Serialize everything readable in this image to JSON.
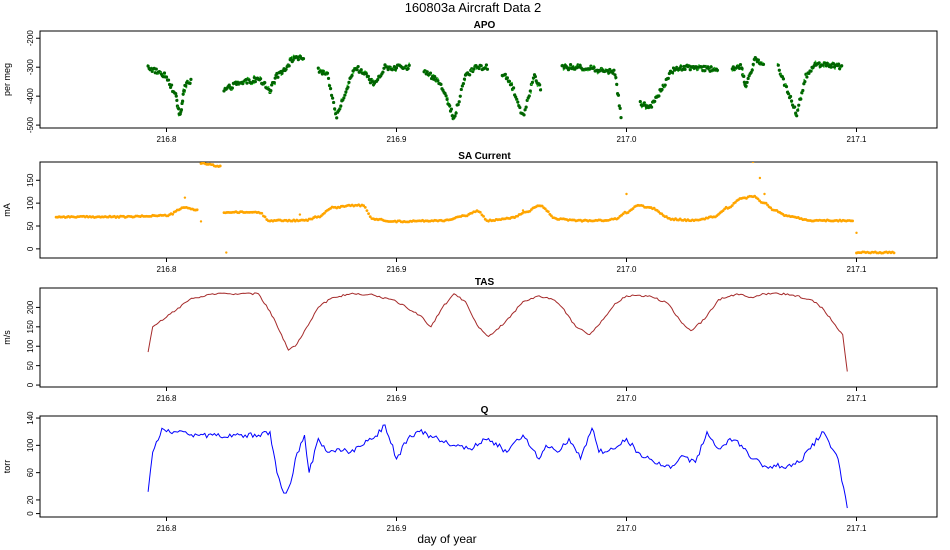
{
  "figure": {
    "title": "160803a   Aircraft Data 2",
    "xlabel": "day of year",
    "xlim": [
      216.745,
      217.135
    ],
    "xticks": [
      216.8,
      216.9,
      217.0,
      217.1
    ],
    "xtick_labels": [
      "216.8",
      "216.9",
      "217.0",
      "217.1"
    ]
  },
  "chart_data": [
    {
      "type": "scatter",
      "title": "APO",
      "xlabel": "",
      "ylabel": "per meg",
      "ylim": [
        -510,
        -175
      ],
      "yticks": [
        -500,
        -400,
        -300,
        -200
      ],
      "ytick_labels": [
        "-500",
        "-400",
        "-300",
        "-200"
      ],
      "color": "#006400",
      "color2": "#32cd32",
      "segments": [
        {
          "x": [
            216.792,
            216.796,
            216.8,
            216.804,
            216.806,
            216.808,
            216.811
          ],
          "y": [
            -300,
            -315,
            -330,
            -400,
            -470,
            -360,
            -345
          ]
        },
        {
          "x": [
            216.825,
            216.83,
            216.835,
            216.84,
            216.845,
            216.848,
            216.852,
            216.856,
            216.86
          ],
          "y": [
            -380,
            -360,
            -350,
            -340,
            -380,
            -330,
            -300,
            -260,
            -280
          ]
        },
        {
          "x": [
            216.866,
            216.87,
            216.874,
            216.878,
            216.882,
            216.886,
            216.89,
            216.895,
            216.9,
            216.906
          ],
          "y": [
            -310,
            -330,
            -470,
            -380,
            -300,
            -320,
            -360,
            -300,
            -300,
            -300
          ]
        },
        {
          "x": [
            216.912,
            216.918,
            216.922,
            216.925,
            216.93,
            216.935,
            216.94
          ],
          "y": [
            -320,
            -340,
            -410,
            -480,
            -330,
            -300,
            -300
          ]
        },
        {
          "x": [
            216.946,
            216.95,
            216.955,
            216.96,
            216.963
          ],
          "y": [
            -320,
            -360,
            -470,
            -330,
            -380
          ]
        },
        {
          "x": [
            216.972,
            216.978,
            216.985,
            216.99,
            216.995,
            216.998
          ],
          "y": [
            -300,
            -300,
            -305,
            -310,
            -320,
            -490
          ]
        },
        {
          "x": [
            217.006,
            217.01,
            217.015,
            217.02,
            217.025,
            217.03,
            217.035,
            217.04
          ],
          "y": [
            -420,
            -440,
            -380,
            -310,
            -300,
            -300,
            -305,
            -310
          ]
        },
        {
          "x": [
            217.046,
            217.05,
            217.052,
            217.056,
            217.06
          ],
          "y": [
            -300,
            -300,
            -370,
            -270,
            -300
          ]
        },
        {
          "x": [
            217.066,
            217.07,
            217.074,
            217.078,
            217.082,
            217.086,
            217.09,
            217.094
          ],
          "y": [
            -300,
            -380,
            -460,
            -330,
            -290,
            -290,
            -295,
            -300
          ]
        }
      ]
    },
    {
      "type": "scatter",
      "title": "SA Current",
      "xlabel": "",
      "ylabel": "mA",
      "ylim": [
        -20,
        190
      ],
      "yticks": [
        0,
        50,
        100,
        150
      ],
      "ytick_labels": [
        "0",
        "50",
        "100",
        "150"
      ],
      "color": "#ffa500",
      "x": [
        216.752,
        216.78,
        216.8,
        216.808,
        216.814,
        216.815,
        216.824,
        216.825,
        216.84,
        216.845,
        216.852,
        216.86,
        216.866,
        216.872,
        216.88,
        216.885,
        216.89,
        216.9,
        216.92,
        216.93,
        216.935,
        216.94,
        216.95,
        216.956,
        216.962,
        216.97,
        216.98,
        216.99,
        216.995,
        217.0,
        217.005,
        217.01,
        217.02,
        217.03,
        217.038,
        217.044,
        217.05,
        217.055,
        217.06,
        217.064,
        217.07,
        217.08,
        217.09,
        217.099,
        217.1,
        217.117
      ],
      "y": [
        70,
        70,
        73,
        90,
        85,
        187,
        180,
        80,
        80,
        62,
        62,
        62,
        70,
        90,
        95,
        95,
        65,
        60,
        62,
        72,
        83,
        62,
        68,
        80,
        95,
        65,
        62,
        62,
        65,
        80,
        95,
        90,
        65,
        62,
        70,
        90,
        110,
        115,
        100,
        85,
        72,
        62,
        62,
        62,
        -8,
        -8
      ],
      "scatter_points": [
        {
          "x": 216.808,
          "y": 112
        },
        {
          "x": 216.815,
          "y": 60
        },
        {
          "x": 216.826,
          "y": -8
        },
        {
          "x": 216.858,
          "y": 75
        },
        {
          "x": 216.955,
          "y": 84
        },
        {
          "x": 217.0,
          "y": 120
        },
        {
          "x": 217.055,
          "y": 190
        },
        {
          "x": 217.058,
          "y": 155
        },
        {
          "x": 217.06,
          "y": 120
        },
        {
          "x": 217.1,
          "y": 35
        }
      ]
    },
    {
      "type": "line",
      "title": "TAS",
      "xlabel": "",
      "ylabel": "m/s",
      "ylim": [
        -5,
        250
      ],
      "yticks": [
        0,
        50,
        100,
        150,
        200
      ],
      "ytick_labels": [
        "0",
        "50",
        "100",
        "150",
        "200"
      ],
      "color": "#a52a2a",
      "x": [
        216.792,
        216.794,
        216.8,
        216.81,
        216.82,
        216.83,
        216.84,
        216.845,
        216.85,
        216.853,
        216.856,
        216.86,
        216.866,
        216.872,
        216.88,
        216.89,
        216.9,
        216.91,
        216.915,
        216.92,
        216.925,
        216.93,
        216.935,
        216.94,
        216.947,
        216.955,
        216.962,
        216.968,
        216.972,
        216.978,
        216.984,
        216.99,
        216.995,
        217.0,
        217.01,
        217.018,
        217.024,
        217.028,
        217.034,
        217.04,
        217.048,
        217.055,
        217.06,
        217.07,
        217.08,
        217.085,
        217.09,
        217.094,
        217.096
      ],
      "y": [
        85,
        150,
        175,
        220,
        235,
        235,
        235,
        190,
        130,
        90,
        100,
        140,
        200,
        225,
        235,
        232,
        215,
        180,
        150,
        200,
        235,
        215,
        155,
        125,
        160,
        215,
        230,
        220,
        200,
        150,
        130,
        170,
        210,
        230,
        230,
        210,
        160,
        140,
        170,
        220,
        235,
        225,
        235,
        235,
        220,
        200,
        160,
        130,
        35
      ]
    },
    {
      "type": "line",
      "title": "Q",
      "xlabel": "",
      "ylabel": "torr",
      "ylim": [
        -5,
        143
      ],
      "yticks": [
        0,
        20,
        60,
        100,
        140
      ],
      "ytick_labels": [
        "0",
        "20",
        "60",
        "100",
        "140"
      ],
      "color": "#0000ff",
      "x": [
        216.792,
        216.794,
        216.798,
        216.8,
        216.804,
        216.81,
        216.82,
        216.83,
        216.84,
        216.845,
        216.848,
        216.85,
        216.852,
        216.854,
        216.856,
        216.86,
        216.862,
        216.866,
        216.87,
        216.875,
        216.88,
        216.89,
        216.895,
        216.9,
        216.905,
        216.91,
        216.918,
        216.925,
        216.932,
        216.94,
        216.948,
        216.955,
        216.962,
        216.965,
        216.97,
        216.975,
        216.98,
        216.985,
        216.988,
        216.995,
        217.0,
        217.005,
        217.01,
        217.015,
        217.02,
        217.024,
        217.03,
        217.035,
        217.04,
        217.045,
        217.05,
        217.055,
        217.06,
        217.07,
        217.075,
        217.08,
        217.085,
        217.088,
        217.092,
        217.096
      ],
      "y": [
        32,
        90,
        125,
        120,
        120,
        115,
        115,
        115,
        115,
        120,
        60,
        38,
        30,
        45,
        80,
        115,
        60,
        110,
        90,
        95,
        90,
        110,
        130,
        80,
        110,
        120,
        110,
        100,
        95,
        110,
        90,
        115,
        80,
        100,
        90,
        110,
        80,
        125,
        90,
        95,
        110,
        90,
        80,
        70,
        70,
        85,
        75,
        120,
        95,
        110,
        100,
        80,
        70,
        70,
        75,
        95,
        120,
        105,
        80,
        8
      ]
    }
  ]
}
